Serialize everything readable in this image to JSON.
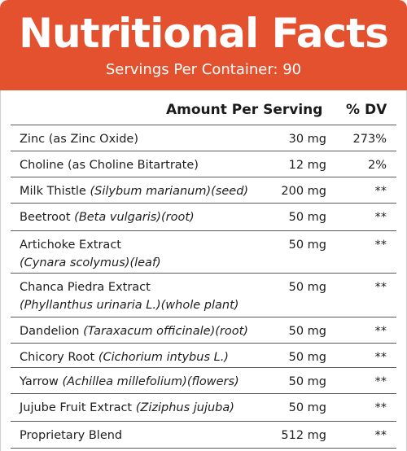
{
  "header": {
    "title": "Nutritional Facts",
    "servings": "Servings Per Container: 90"
  },
  "columns": {
    "amount": "Amount Per Serving",
    "dv": "% DV"
  },
  "rows": [
    {
      "name": "Zinc (as Zinc Oxide)",
      "latin": "",
      "part": "",
      "line2_latin": "",
      "line2_part": "",
      "amount": "30 mg",
      "dv": "273%"
    },
    {
      "name": "Choline (as Choline Bitartrate)",
      "latin": "",
      "part": "",
      "line2_latin": "",
      "line2_part": "",
      "amount": "12 mg",
      "dv": "2%"
    },
    {
      "name": "Milk Thistle ",
      "latin": "(Silybum marianum)",
      "part": "(seed)",
      "line2_latin": "",
      "line2_part": "",
      "amount": "200 mg",
      "dv": "**"
    },
    {
      "name": "Beetroot ",
      "latin": "(Beta vulgaris)",
      "part": "(root)",
      "line2_latin": "",
      "line2_part": "",
      "amount": "50 mg",
      "dv": "**"
    },
    {
      "name": "Artichoke Extract",
      "latin": "",
      "part": "",
      "line2_latin": "(Cynara scolymus)",
      "line2_part": "(leaf)",
      "amount": "50 mg",
      "dv": "**"
    },
    {
      "name": "Chanca Piedra Extract",
      "latin": "",
      "part": "",
      "line2_latin": "(Phyllanthus urinaria L.)",
      "line2_part": "(whole plant)",
      "amount": "50 mg",
      "dv": "**"
    },
    {
      "name": "Dandelion ",
      "latin": "(Taraxacum officinale)",
      "part": "(root)",
      "line2_latin": "",
      "line2_part": "",
      "amount": "50 mg",
      "dv": "**"
    },
    {
      "name": "Chicory Root ",
      "latin": "(Cichorium intybus L.)",
      "part": "",
      "line2_latin": "",
      "line2_part": "",
      "amount": "50 mg",
      "dv": "**"
    },
    {
      "name": "Yarrow ",
      "latin": "(Achillea millefolium)",
      "part": "(flowers)",
      "line2_latin": "",
      "line2_part": "",
      "amount": "50 mg",
      "dv": "**"
    },
    {
      "name": "Jujube Fruit Extract ",
      "latin": "(Ziziphus jujuba)",
      "part": "",
      "line2_latin": "",
      "line2_part": "",
      "amount": "50 mg",
      "dv": "**"
    },
    {
      "name": "Proprietary Blend",
      "latin": "",
      "part": "",
      "line2_latin": "",
      "line2_part": "",
      "amount": "512 mg",
      "dv": "**"
    }
  ],
  "colors": {
    "header_bg": "#e4512e",
    "header_text": "#ffffff",
    "rule": "#5a5a5a"
  }
}
